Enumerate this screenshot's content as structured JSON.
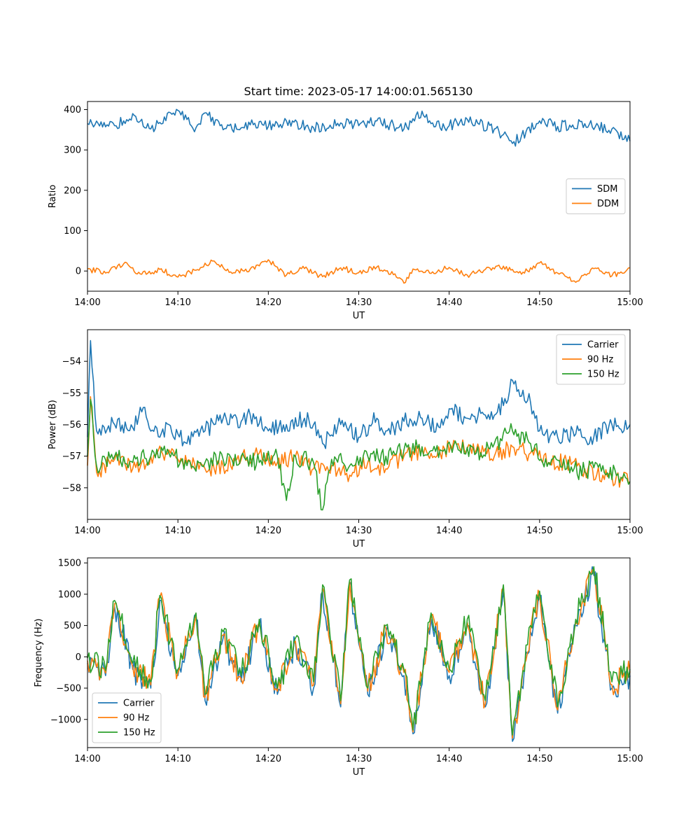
{
  "chart_data": [
    {
      "type": "line",
      "title": "Start time: 2023-05-17 14:00:01.565130",
      "xlabel": "UT",
      "ylabel": "Ratio",
      "xlim": [
        "14:00",
        "15:00"
      ],
      "ylim": [
        -50,
        420
      ],
      "xticks": [
        "14:00",
        "14:10",
        "14:20",
        "14:30",
        "14:40",
        "14:50",
        "15:00"
      ],
      "yticks": [
        0,
        100,
        200,
        300,
        400
      ],
      "grid": false,
      "legend_position": "center-right",
      "series": [
        {
          "name": "SDM",
          "color": "#1f77b4",
          "x": [
            "14:00",
            "14:03",
            "14:04",
            "14:05",
            "14:07",
            "14:08",
            "14:10",
            "14:12",
            "14:13",
            "14:15",
            "14:18",
            "14:20",
            "14:22",
            "14:25",
            "14:28",
            "14:30",
            "14:32",
            "14:35",
            "14:37",
            "14:38",
            "14:40",
            "14:42",
            "14:45",
            "14:46",
            "14:47",
            "14:50",
            "14:52",
            "14:55",
            "14:58",
            "15:00"
          ],
          "values": [
            365,
            360,
            372,
            390,
            352,
            368,
            398,
            355,
            392,
            350,
            362,
            358,
            372,
            355,
            367,
            360,
            372,
            352,
            396,
            365,
            360,
            376,
            352,
            338,
            316,
            372,
            358,
            365,
            352,
            322
          ]
        },
        {
          "name": "DDM",
          "color": "#ff7f0e",
          "x": [
            "14:00",
            "14:02",
            "14:04",
            "14:06",
            "14:08",
            "14:10",
            "14:12",
            "14:14",
            "14:16",
            "14:18",
            "14:20",
            "14:22",
            "14:24",
            "14:26",
            "14:28",
            "14:30",
            "14:32",
            "14:34",
            "14:35",
            "14:36",
            "14:38",
            "14:40",
            "14:42",
            "14:44",
            "14:46",
            "14:48",
            "14:50",
            "14:52",
            "14:54",
            "14:56",
            "14:58",
            "15:00"
          ],
          "values": [
            5,
            -5,
            18,
            -8,
            4,
            -15,
            2,
            25,
            -6,
            5,
            28,
            -10,
            6,
            -14,
            8,
            -4,
            10,
            -7,
            -30,
            5,
            -6,
            9,
            -10,
            4,
            12,
            -8,
            20,
            -5,
            -28,
            6,
            -12,
            8
          ]
        }
      ]
    },
    {
      "type": "line",
      "title": "",
      "xlabel": "UT",
      "ylabel": "Power (dB)",
      "xlim": [
        "14:00",
        "15:00"
      ],
      "ylim": [
        -59,
        -53
      ],
      "xticks": [
        "14:00",
        "14:10",
        "14:20",
        "14:30",
        "14:40",
        "14:50",
        "15:00"
      ],
      "yticks": [
        -54,
        -55,
        -56,
        -57,
        -58
      ],
      "grid": false,
      "legend_position": "upper-right",
      "series": [
        {
          "name": "Carrier",
          "color": "#1f77b4",
          "x": [
            "14:00",
            "14:00.3",
            "14:01",
            "14:03",
            "14:05",
            "14:06",
            "14:08",
            "14:09",
            "14:11",
            "14:13",
            "14:15",
            "14:17",
            "14:18",
            "14:20",
            "14:22",
            "14:24",
            "14:25",
            "14:26",
            "14:28",
            "14:30",
            "14:32",
            "14:33",
            "14:35",
            "14:37",
            "14:39",
            "14:40",
            "14:42",
            "14:44",
            "14:46",
            "14:47",
            "14:48",
            "14:49",
            "14:50",
            "14:52",
            "14:54",
            "14:56",
            "14:58",
            "15:00"
          ],
          "values": [
            -56.4,
            -53.2,
            -56.2,
            -56.0,
            -56.1,
            -55.6,
            -56.4,
            -56.0,
            -56.6,
            -56.2,
            -55.8,
            -55.9,
            -55.7,
            -56.2,
            -56.0,
            -55.8,
            -56.0,
            -56.6,
            -56.0,
            -56.4,
            -55.8,
            -56.2,
            -55.9,
            -55.8,
            -56.1,
            -55.5,
            -55.8,
            -55.7,
            -55.4,
            -54.6,
            -55.1,
            -55.3,
            -56.2,
            -56.4,
            -56.3,
            -56.4,
            -56.0,
            -56.0
          ]
        },
        {
          "name": "90 Hz",
          "color": "#ff7f0e",
          "x": [
            "14:00",
            "14:00.3",
            "14:01",
            "14:03",
            "14:05",
            "14:07",
            "14:09",
            "14:11",
            "14:13",
            "14:15",
            "14:17",
            "14:19",
            "14:21",
            "14:23",
            "14:25",
            "14:27",
            "14:29",
            "14:31",
            "14:33",
            "14:35",
            "14:37",
            "14:39",
            "14:41",
            "14:43",
            "14:45",
            "14:47",
            "14:49",
            "14:51",
            "14:53",
            "14:55",
            "14:57",
            "15:00"
          ],
          "values": [
            -57.3,
            -55.0,
            -57.5,
            -57.1,
            -57.4,
            -57.0,
            -56.8,
            -57.2,
            -57.4,
            -57.3,
            -57.1,
            -56.9,
            -57.2,
            -57.0,
            -57.4,
            -57.3,
            -57.6,
            -57.2,
            -57.4,
            -57.0,
            -56.8,
            -56.9,
            -56.6,
            -56.8,
            -57.0,
            -56.7,
            -56.9,
            -57.2,
            -57.2,
            -57.4,
            -57.6,
            -57.8
          ]
        },
        {
          "name": "150 Hz",
          "color": "#2ca02c",
          "x": [
            "14:00",
            "14:00.3",
            "14:01",
            "14:03",
            "14:05",
            "14:07",
            "14:09",
            "14:11",
            "14:13",
            "14:15",
            "14:17",
            "14:19",
            "14:21",
            "14:22",
            "14:23",
            "14:25",
            "14:26",
            "14:27",
            "14:29",
            "14:31",
            "14:33",
            "14:35",
            "14:37",
            "14:39",
            "14:41",
            "14:43",
            "14:45",
            "14:47",
            "14:49",
            "14:51",
            "14:53",
            "14:55",
            "14:57",
            "15:00"
          ],
          "values": [
            -57.0,
            -55.1,
            -57.3,
            -57.0,
            -57.2,
            -57.0,
            -56.9,
            -57.3,
            -57.2,
            -57.1,
            -57.0,
            -57.2,
            -57.0,
            -58.4,
            -57.0,
            -57.2,
            -58.7,
            -57.1,
            -57.3,
            -57.0,
            -57.0,
            -56.8,
            -56.7,
            -56.8,
            -56.8,
            -56.9,
            -56.6,
            -56.2,
            -56.6,
            -57.2,
            -57.4,
            -57.5,
            -57.3,
            -57.8
          ]
        }
      ]
    },
    {
      "type": "line",
      "title": "",
      "xlabel": "UT",
      "ylabel": "Frequency (Hz)",
      "xlim": [
        "14:00",
        "15:00"
      ],
      "ylim": [
        -1450,
        1580
      ],
      "xticks": [
        "14:00",
        "14:10",
        "14:20",
        "14:30",
        "14:40",
        "14:50",
        "15:00"
      ],
      "yticks": [
        1500,
        1000,
        500,
        0,
        -500,
        -1000
      ],
      "grid": false,
      "legend_position": "lower-left",
      "series": [
        {
          "name": "Carrier",
          "color": "#1f77b4",
          "x": [
            "14:00",
            "14:02",
            "14:03",
            "14:05",
            "14:07",
            "14:08",
            "14:10",
            "14:12",
            "14:13",
            "14:15",
            "14:17",
            "14:19",
            "14:21",
            "14:23",
            "14:25",
            "14:26",
            "14:28",
            "14:29",
            "14:31",
            "14:33",
            "14:35",
            "14:36",
            "14:38",
            "14:40",
            "14:42",
            "14:44",
            "14:46",
            "14:47",
            "14:49",
            "14:50",
            "14:52",
            "14:54",
            "14:56",
            "14:58",
            "15:00"
          ],
          "values": [
            -100,
            -300,
            800,
            -200,
            -500,
            900,
            -300,
            600,
            -700,
            300,
            -400,
            500,
            -600,
            200,
            -500,
            1050,
            -800,
            1150,
            -600,
            400,
            -300,
            -1230,
            600,
            -300,
            500,
            -800,
            1050,
            -1350,
            400,
            950,
            -900,
            500,
            1300,
            -500,
            -300
          ]
        },
        {
          "name": "90 Hz",
          "color": "#ff7f0e",
          "x": [
            "14:00",
            "14:02",
            "14:03",
            "14:05",
            "14:07",
            "14:08",
            "14:10",
            "14:12",
            "14:13",
            "14:15",
            "14:17",
            "14:19",
            "14:21",
            "14:23",
            "14:25",
            "14:26",
            "14:28",
            "14:29",
            "14:31",
            "14:33",
            "14:35",
            "14:36",
            "14:38",
            "14:40",
            "14:42",
            "14:44",
            "14:46",
            "14:47",
            "14:49",
            "14:50",
            "14:52",
            "14:54",
            "14:56",
            "14:58",
            "15:00"
          ],
          "values": [
            -60,
            -260,
            850,
            -150,
            -450,
            950,
            -250,
            650,
            -650,
            350,
            -350,
            550,
            -550,
            250,
            -450,
            1100,
            -750,
            1200,
            -550,
            450,
            -250,
            -1200,
            650,
            -250,
            550,
            -750,
            1100,
            -1300,
            450,
            1000,
            -850,
            550,
            1380,
            -450,
            -250
          ]
        },
        {
          "name": "150 Hz",
          "color": "#2ca02c",
          "x": [
            "14:00",
            "14:02",
            "14:03",
            "14:05",
            "14:07",
            "14:08",
            "14:10",
            "14:12",
            "14:13",
            "14:15",
            "14:17",
            "14:19",
            "14:21",
            "14:23",
            "14:25",
            "14:26",
            "14:28",
            "14:29",
            "14:31",
            "14:33",
            "14:35",
            "14:36",
            "14:38",
            "14:40",
            "14:42",
            "14:44",
            "14:46",
            "14:47",
            "14:49",
            "14:50",
            "14:52",
            "14:54",
            "14:56",
            "14:58",
            "15:00"
          ],
          "values": [
            -20,
            -220,
            900,
            -100,
            -400,
            980,
            -200,
            700,
            -600,
            400,
            -300,
            600,
            -500,
            300,
            -400,
            1150,
            -700,
            1230,
            -500,
            500,
            -200,
            -1170,
            700,
            -200,
            600,
            -700,
            1150,
            -1250,
            500,
            1050,
            -800,
            600,
            1440,
            -400,
            -200
          ]
        }
      ]
    }
  ]
}
